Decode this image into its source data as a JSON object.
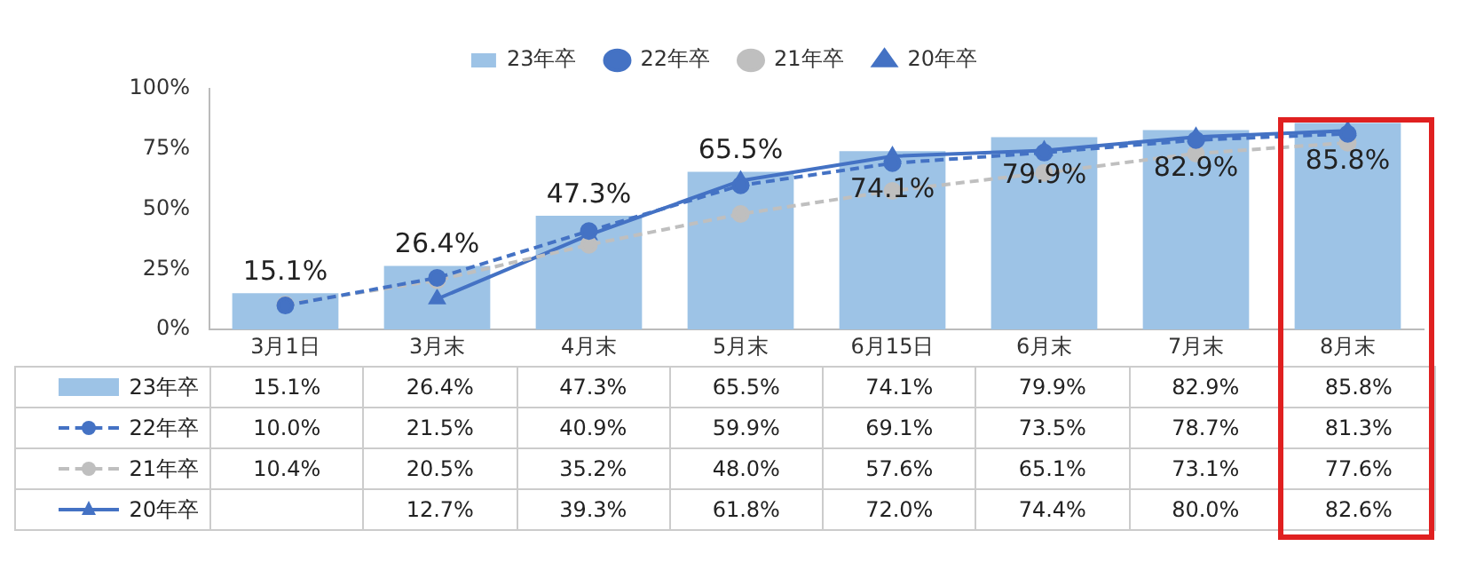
{
  "chart_data": {
    "type": "bar",
    "categories": [
      "3月1日",
      "3月末",
      "4月末",
      "5月末",
      "6月15日",
      "6月末",
      "7月末",
      "8月末"
    ],
    "series": [
      {
        "name": "23年卒",
        "color": "#9dc3e6",
        "values": [
          15.1,
          26.4,
          47.3,
          65.5,
          74.1,
          79.9,
          82.9,
          85.8
        ],
        "value_labels": [
          "15.1%",
          "26.4%",
          "47.3%",
          "65.5%",
          "74.1%",
          "79.9%",
          "82.9%",
          "85.8%"
        ]
      },
      {
        "name": "22年卒",
        "type": "line",
        "color": "#4472c4",
        "marker": "circle",
        "line_style": "dashed",
        "values": [
          10.0,
          21.5,
          40.9,
          59.9,
          69.1,
          73.5,
          78.7,
          81.3
        ],
        "value_labels": [
          "10.0%",
          "21.5%",
          "40.9%",
          "59.9%",
          "69.1%",
          "73.5%",
          "78.7%",
          "81.3%"
        ]
      },
      {
        "name": "21年卒",
        "type": "line",
        "color": "#bfbfbf",
        "marker": "circle",
        "line_style": "dashed",
        "values": [
          10.4,
          20.5,
          35.2,
          48.0,
          57.6,
          65.1,
          73.1,
          77.6
        ],
        "value_labels": [
          "10.4%",
          "20.5%",
          "35.2%",
          "48.0%",
          "57.6%",
          "65.1%",
          "73.1%",
          "77.6%"
        ]
      },
      {
        "name": "20年卒",
        "type": "line",
        "color": "#4472c4",
        "marker": "triangle",
        "line_style": "solid",
        "values": [
          null,
          12.7,
          39.3,
          61.8,
          72.0,
          74.4,
          80.0,
          82.6
        ],
        "value_labels": [
          null,
          "12.7%",
          "39.3%",
          "61.8%",
          "72.0%",
          "74.4%",
          "80.0%",
          "82.6%"
        ]
      }
    ],
    "ylim": [
      0,
      100
    ],
    "yticks": [
      {
        "value": 0,
        "label": "0%"
      },
      {
        "value": 25,
        "label": "25%"
      },
      {
        "value": 50,
        "label": "50%"
      },
      {
        "value": 75,
        "label": "75%"
      },
      {
        "value": 100,
        "label": "100%"
      }
    ],
    "grid": false,
    "legend": "top"
  }
}
